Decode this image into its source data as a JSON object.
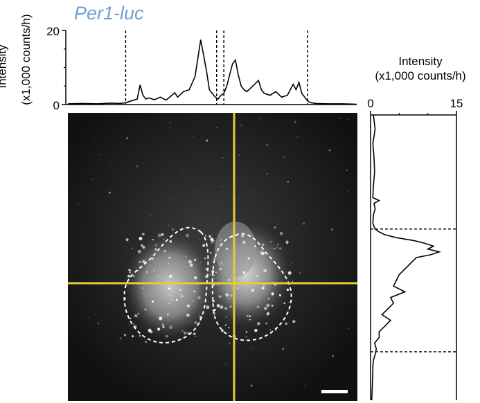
{
  "figure": {
    "title": "Per1-luc",
    "scale_bar": "scale-bar"
  },
  "chart_data": [
    {
      "type": "line",
      "name": "horizontal-profile",
      "ylabel_line1": "Intensity",
      "ylabel_line2": "(x1,000 counts/h)",
      "ylim": [
        0,
        20
      ],
      "yticks": [
        "0",
        "20"
      ],
      "xlim": [
        0,
        100
      ],
      "grid": false,
      "dashed_lines_x": [
        20,
        51.5,
        54,
        83
      ],
      "series": [
        {
          "x": [
            0,
            5,
            10,
            15,
            18,
            20,
            22,
            24,
            25,
            26,
            27,
            28,
            30,
            32,
            34,
            36,
            37,
            38,
            40,
            42,
            44,
            46,
            48,
            49,
            50,
            51,
            52,
            53,
            54,
            55,
            56,
            57,
            58,
            59,
            60,
            61,
            62,
            64,
            66,
            67,
            68,
            70,
            72,
            74,
            76,
            78,
            79,
            80,
            81,
            82,
            83,
            84,
            86,
            90,
            95,
            100
          ],
          "values": [
            0.2,
            0.3,
            0.2,
            0.4,
            0.3,
            0.5,
            1.0,
            1.5,
            5.3,
            2.5,
            1.5,
            1.8,
            1.3,
            2.0,
            1.2,
            2.5,
            3.2,
            2.0,
            3.5,
            4.0,
            7.5,
            17.5,
            9.0,
            4.0,
            3.0,
            2.0,
            1.5,
            2.5,
            3.0,
            5.0,
            8.0,
            11.0,
            12.0,
            8.0,
            5.0,
            4.0,
            3.5,
            5.0,
            6.5,
            4.0,
            3.0,
            2.5,
            3.5,
            2.0,
            2.5,
            5.5,
            4.0,
            6.0,
            3.0,
            2.0,
            1.0,
            0.5,
            0.3,
            0.2,
            0.2,
            0.1
          ]
        }
      ]
    },
    {
      "type": "line",
      "name": "vertical-profile",
      "title_line1": "Intensity",
      "title_line2": "(x1,000 counts/h)",
      "xlim": [
        0,
        15
      ],
      "xticks": [
        "0",
        "15"
      ],
      "ylim": [
        0,
        100
      ],
      "grid": false,
      "dashed_lines_y": [
        40,
        83
      ],
      "series": [
        {
          "y": [
            0,
            5,
            10,
            15,
            20,
            25,
            29,
            30,
            31,
            33,
            35,
            38,
            40,
            41,
            42,
            43,
            44,
            45,
            46,
            47,
            48,
            49,
            50,
            52,
            54,
            56,
            58,
            60,
            62,
            64,
            66,
            68,
            70,
            72,
            74,
            76,
            78,
            80,
            82,
            84,
            86,
            88,
            90,
            95,
            100
          ],
          "values": [
            0.5,
            0.8,
            0.4,
            0.6,
            0.7,
            0.5,
            0.4,
            1.5,
            0.6,
            0.8,
            0.5,
            0.4,
            0.8,
            1.5,
            2.5,
            4.5,
            7.5,
            9.5,
            11.0,
            10.0,
            12.0,
            10.5,
            8.0,
            7.0,
            6.0,
            5.0,
            4.5,
            4.0,
            6.0,
            3.5,
            4.0,
            3.0,
            2.0,
            3.5,
            2.5,
            1.5,
            1.5,
            0.7,
            1.0,
            0.8,
            0.5,
            0.4,
            0.4,
            0.3,
            0.2
          ]
        }
      ]
    }
  ]
}
